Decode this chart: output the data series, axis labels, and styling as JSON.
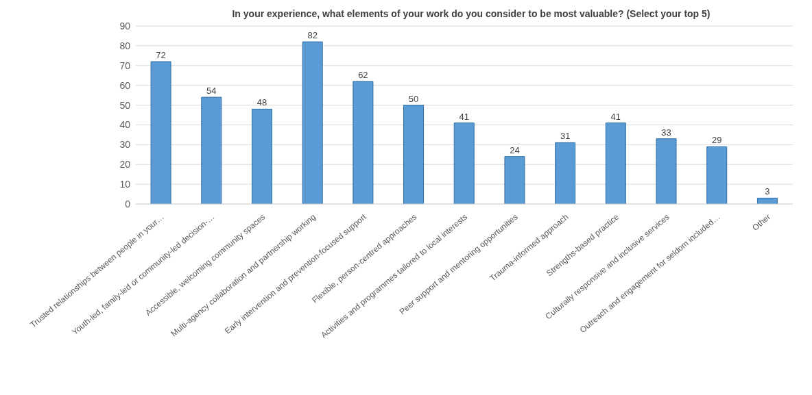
{
  "chart_data": {
    "type": "bar",
    "title": "In your experience, what elements of your work do you consider to be most valuable? (Select your top 5)",
    "categories": [
      "Trusted relationships between people in your…",
      "Youth-led, family-led or community-led decision-…",
      "Accessible, welcoming community spaces",
      "Multi-agency collaboration and partnership working",
      "Early intervention and prevention-focused support",
      "Flexible, person-centred approaches",
      "Activities and programmes tailored to local interests",
      "Peer support and mentoring opportunities",
      "Trauma-informed approach",
      "Strengths-based practice",
      "Culturally responsive and inclusive services",
      "Outreach and engagement for seldom included…",
      "Other"
    ],
    "values": [
      72,
      54,
      48,
      82,
      62,
      50,
      41,
      24,
      31,
      41,
      33,
      29,
      3
    ],
    "color": "#5b9bd5",
    "ylim": [
      0,
      90
    ],
    "yticks": [
      0,
      10,
      20,
      30,
      40,
      50,
      60,
      70,
      80,
      90
    ],
    "grid": "y",
    "data_labels": true
  }
}
